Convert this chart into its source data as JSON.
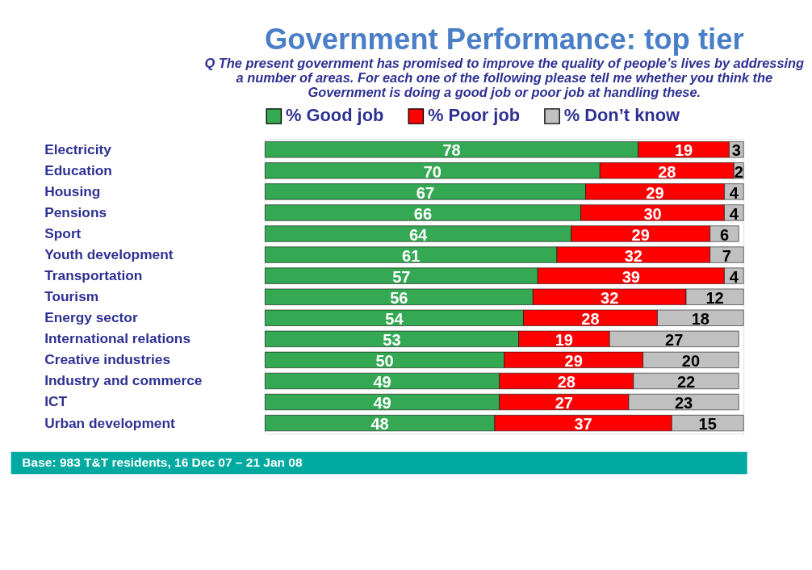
{
  "chart_data": {
    "type": "bar",
    "orientation": "horizontal",
    "stacked": true,
    "data_labels": true,
    "legend": "top",
    "title": "Government Performance: top tier",
    "subtitle": "Q   The present government has promised to improve the quality of people’s lives by addressing a number of areas. For each one of the following please tell me whether you think the Government is doing a good job or poor job at handling these.",
    "annotations": [
      "Base: 983 T&T residents, 16 Dec 07 – 21 Jan 08"
    ],
    "categories": [
      "Electricity",
      "Education",
      "Housing",
      "Pensions",
      "Sport",
      "Youth development",
      "Transportation",
      "Tourism",
      "Energy sector",
      "International relations",
      "Creative industries",
      "Industry and commerce",
      "ICT",
      "Urban development"
    ],
    "series": [
      {
        "name": "% Good job",
        "color": "#34a853",
        "values": [
          78,
          70,
          67,
          66,
          64,
          61,
          57,
          56,
          54,
          53,
          50,
          49,
          49,
          48
        ]
      },
      {
        "name": "% Poor job",
        "color": "#ff0000",
        "values": [
          19,
          28,
          29,
          30,
          29,
          32,
          39,
          32,
          28,
          19,
          29,
          28,
          27,
          37
        ]
      },
      {
        "name": "% Don’t know",
        "color": "#c0c0c0",
        "values": [
          3,
          2,
          4,
          4,
          6,
          7,
          4,
          12,
          18,
          27,
          20,
          22,
          23,
          15
        ]
      }
    ]
  }
}
